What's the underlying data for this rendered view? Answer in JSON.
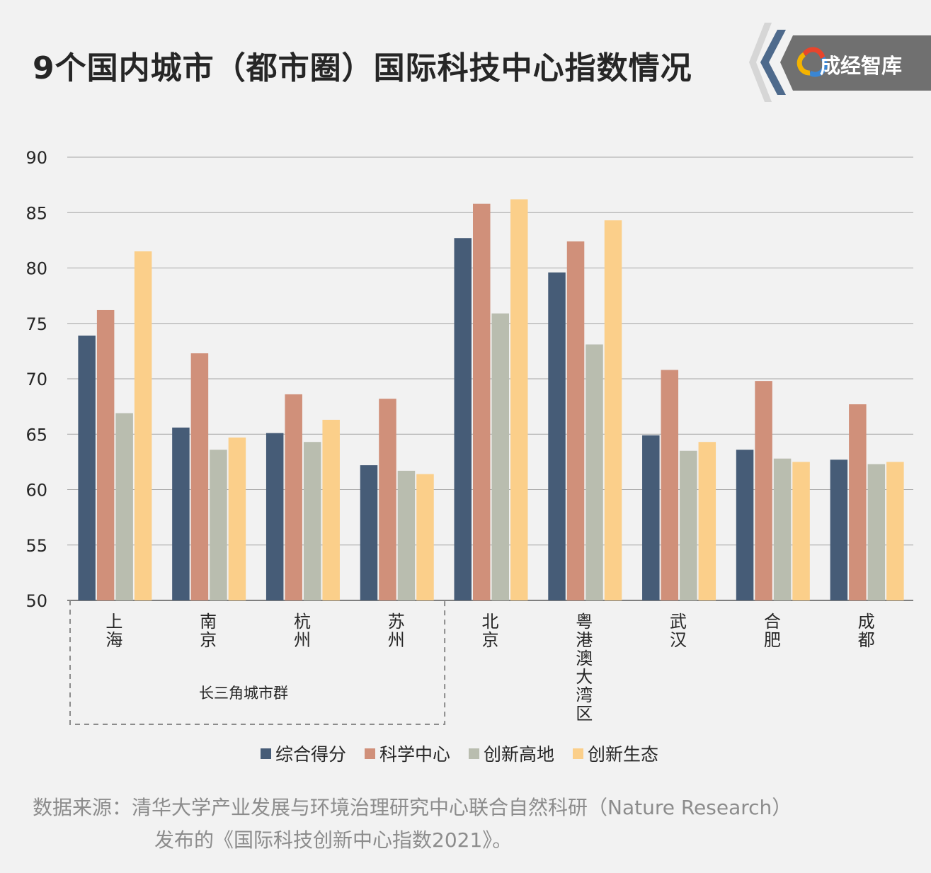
{
  "title": "9个国内城市（都市圈）国际科技中心指数情况",
  "logo": {
    "text": "成经智库",
    "icon": "chengjing-logo-icon"
  },
  "colors": {
    "composite": "#465c77",
    "science": "#d0907a",
    "highland": "#b9bdaf",
    "ecology": "#fbcf8a",
    "grid": "#a6a6a6",
    "text": "#262626",
    "bracket": "#8c8c8c"
  },
  "chart_data": {
    "type": "bar",
    "categories": [
      "上海",
      "南京",
      "杭州",
      "苏州",
      "北京",
      "粤港澳大湾区",
      "武汉",
      "合肥",
      "成都"
    ],
    "series": [
      {
        "name": "综合得分",
        "values": [
          73.9,
          65.6,
          65.1,
          62.2,
          82.7,
          79.6,
          64.9,
          63.6,
          62.7
        ]
      },
      {
        "name": "科学中心",
        "values": [
          76.2,
          72.3,
          68.6,
          68.2,
          85.8,
          82.4,
          70.8,
          69.8,
          67.7
        ]
      },
      {
        "name": "创新高地",
        "values": [
          66.9,
          63.6,
          64.3,
          61.7,
          75.9,
          73.1,
          63.5,
          62.8,
          62.3
        ]
      },
      {
        "name": "创新生态",
        "values": [
          81.5,
          64.7,
          66.3,
          61.4,
          86.2,
          84.3,
          64.3,
          62.5,
          62.5
        ]
      }
    ],
    "yticks": [
      "90",
      "85",
      "80",
      "75",
      "70",
      "65",
      "60",
      "55",
      "50"
    ],
    "ylim": [
      50,
      90
    ],
    "grid": true,
    "legend_position": "bottom",
    "group_label": "长三角城市群"
  },
  "source": {
    "line1": "数据来源：清华大学产业发展与环境治理研究中心联合自然科研（Nature Research）",
    "line2": "发布的《国际科技创新中心指数2021》。"
  }
}
